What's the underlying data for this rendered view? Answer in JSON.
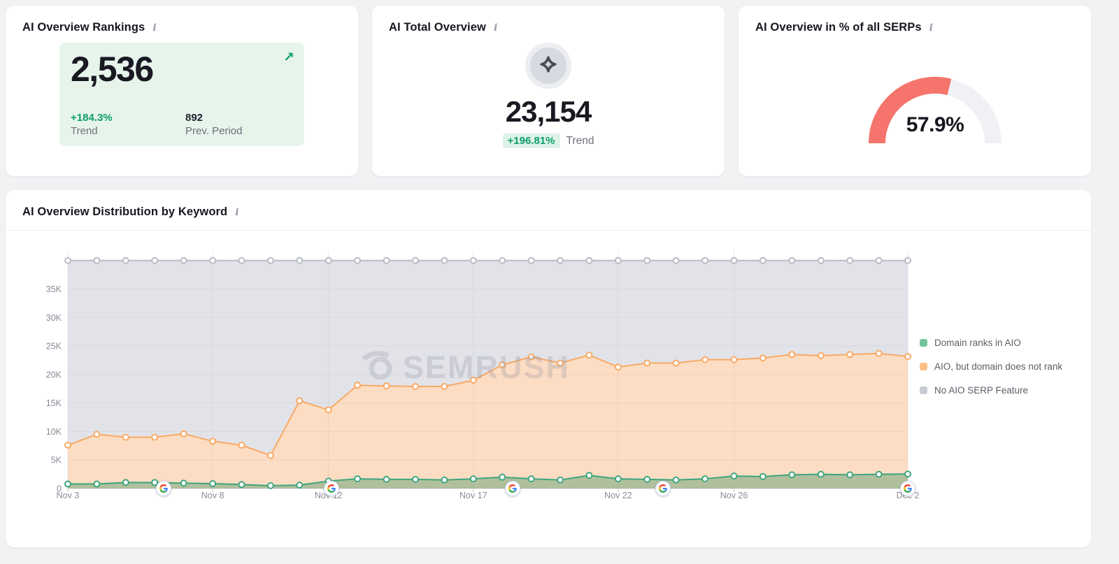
{
  "icons": {
    "info_glyph": "i",
    "expand_glyph": "↗"
  },
  "colors": {
    "page_bg": "#f2f2f5",
    "card_bg": "#ffffff",
    "accent_green": "#0d9e6d",
    "panel_green_bg": "#e7f4ec",
    "pill_green_bg": "#def2e8",
    "gauge_red": "#f5756d",
    "gauge_track": "#f0f1f5",
    "series_green": "#3fa57d",
    "series_orange": "#f9a963",
    "series_gray": "#b9bcc6"
  },
  "cards": {
    "rankings": {
      "title": "AI Overview Rankings",
      "value": "2,536",
      "trend_value": "+184.3%",
      "trend_label": "Trend",
      "prev_value": "892",
      "prev_label": "Prev. Period"
    },
    "total": {
      "title": "AI Total Overview",
      "value": "23,154",
      "trend_value": "+196.81%",
      "trend_label": "Trend"
    },
    "serps": {
      "title": "AI Overview in % of all SERPs",
      "value": "57.9%",
      "percent": 57.9
    }
  },
  "distribution": {
    "title": "AI Overview Distribution by Keyword",
    "watermark_text": "SEMRUSH",
    "chart_data": {
      "type": "area",
      "stacked": true,
      "grid": true,
      "legend_position": "right",
      "ylim": [
        0,
        40000
      ],
      "total_per_day": 40000,
      "y_ticks": [
        "0",
        "5K",
        "10K",
        "15K",
        "20K",
        "25K",
        "30K",
        "35K"
      ],
      "x": [
        "Nov 3",
        "Nov 4",
        "Nov 5",
        "Nov 6",
        "Nov 7",
        "Nov 8",
        "Nov 9",
        "Nov 10",
        "Nov 11",
        "Nov 12",
        "Nov 13",
        "Nov 14",
        "Nov 15",
        "Nov 16",
        "Nov 17",
        "Nov 18",
        "Nov 19",
        "Nov 20",
        "Nov 21",
        "Nov 22",
        "Nov 23",
        "Nov 24",
        "Nov 25",
        "Nov 26",
        "Nov 27",
        "Nov 28",
        "Nov 29",
        "Nov 30",
        "Dec 1",
        "Dec 2"
      ],
      "x_tick_labels": [
        "Nov 3",
        "Nov 8",
        "Nov 12",
        "Nov 17",
        "Nov 22",
        "Nov 26",
        "Dec 2"
      ],
      "x_tick_indices": [
        0,
        5,
        9,
        14,
        19,
        23,
        29
      ],
      "series": [
        {
          "name": "Domain ranks in AIO",
          "color": "#3fa57d",
          "swatch": "#72c39b",
          "values": [
            800,
            800,
            1050,
            1050,
            950,
            860,
            700,
            500,
            600,
            1300,
            1700,
            1600,
            1600,
            1500,
            1700,
            2000,
            1700,
            1500,
            2300,
            1700,
            1600,
            1500,
            1700,
            2200,
            2100,
            2400,
            2500,
            2400,
            2500,
            2536
          ]
        },
        {
          "name": "AIO, but domain does not rank",
          "color": "#f9a963",
          "swatch": "#fdbd85",
          "values": [
            6800,
            8700,
            7950,
            7950,
            8650,
            7440,
            6900,
            5300,
            14800,
            12500,
            16400,
            16400,
            16300,
            16400,
            17300,
            19700,
            21400,
            20500,
            21100,
            19600,
            20400,
            20500,
            20900,
            20400,
            20800,
            21100,
            20800,
            21100,
            21200,
            20618
          ]
        },
        {
          "name": "No AIO SERP Feature",
          "color": "#b9bcc6",
          "swatch": "#c9cbd3",
          "values": [
            32400,
            30500,
            31000,
            31000,
            30400,
            31700,
            32400,
            34200,
            24600,
            26200,
            21900,
            22000,
            22100,
            22100,
            21000,
            18300,
            16900,
            18000,
            16600,
            18700,
            18000,
            18000,
            17400,
            17400,
            17100,
            16500,
            16700,
            16500,
            16300,
            16846
          ]
        }
      ],
      "annotations": {
        "google_algorithm_update_markers": [
          {
            "date": "Nov 6",
            "index": 3.3
          },
          {
            "date": "Nov 12",
            "index": 9.1
          },
          {
            "date": "Nov 18",
            "index": 15.35
          },
          {
            "date": "Nov 23",
            "index": 20.55
          },
          {
            "date": "Dec 2",
            "index": 29
          }
        ]
      }
    }
  }
}
